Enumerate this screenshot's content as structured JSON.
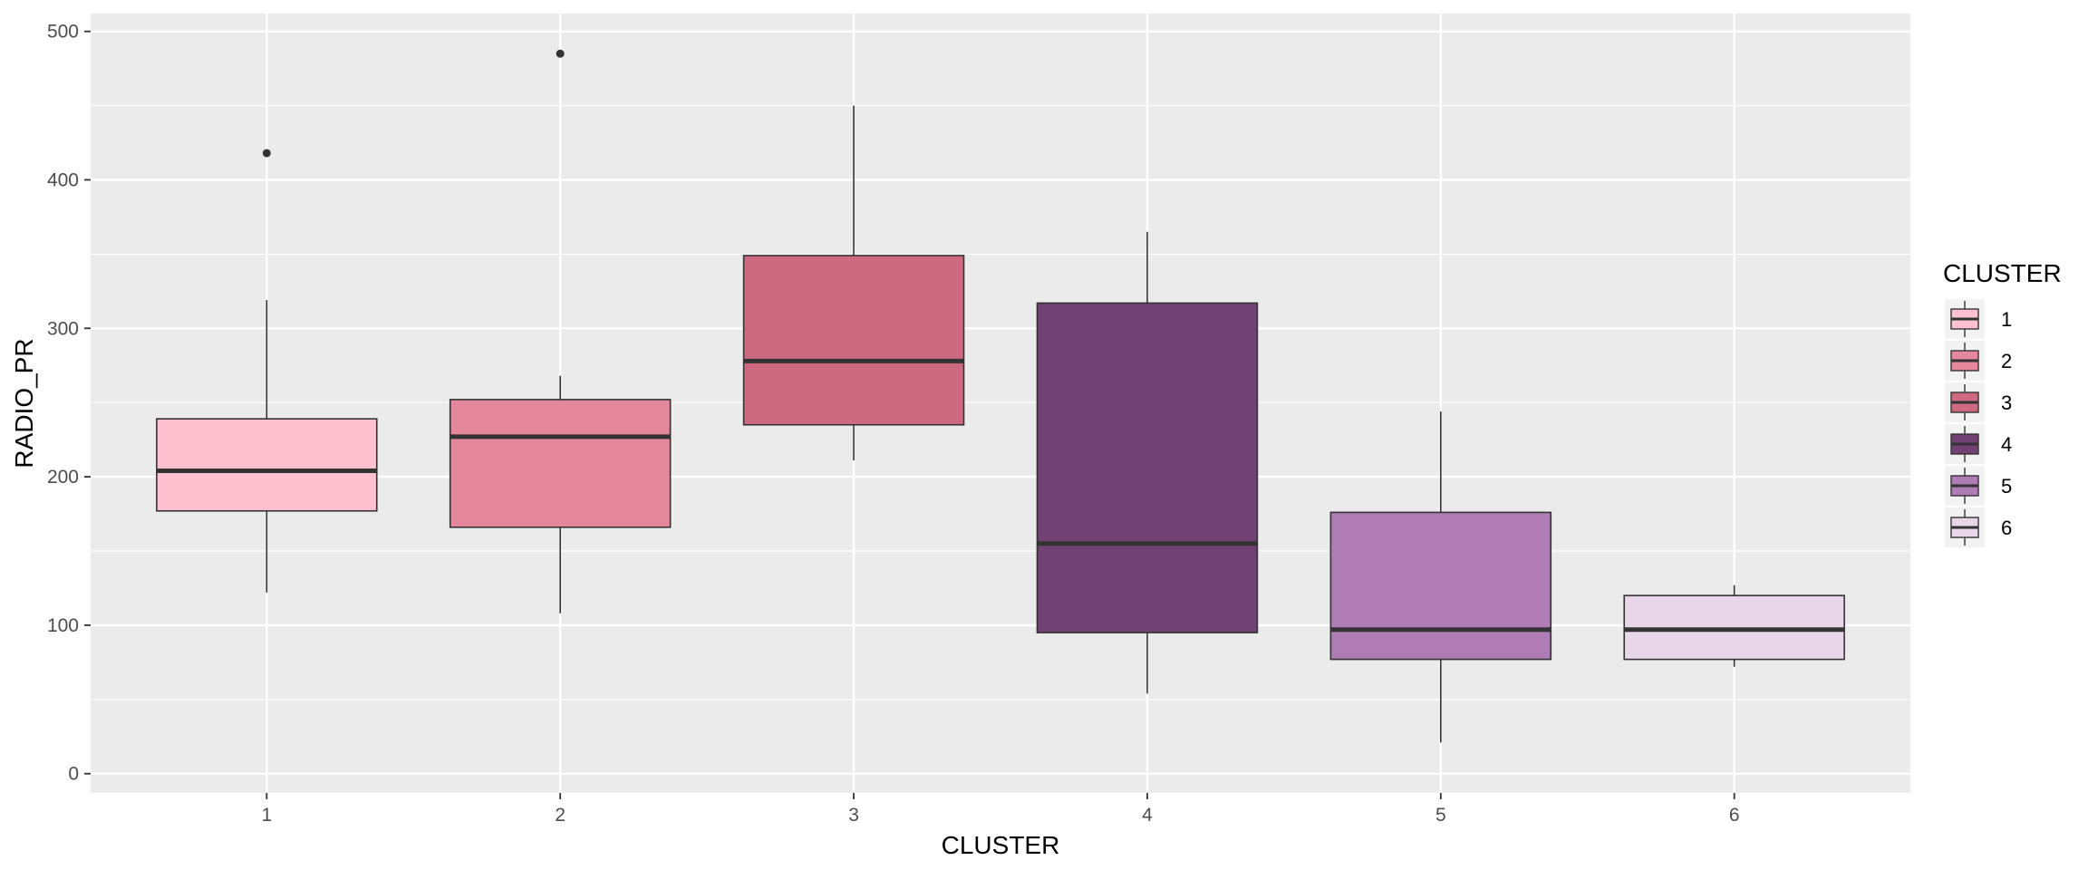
{
  "chart_data": {
    "type": "boxplot",
    "xlabel": "CLUSTER",
    "ylabel": "RADIO_PR",
    "ylim": [
      0,
      500
    ],
    "yticks": [
      0,
      100,
      200,
      300,
      400,
      500
    ],
    "categories": [
      "1",
      "2",
      "3",
      "4",
      "5",
      "6"
    ],
    "grid": true,
    "legend": {
      "title": "CLUSTER",
      "position": "right"
    },
    "boxes": [
      {
        "category": "1",
        "color": "#FFC0CF",
        "whisker_low": 122,
        "q1": 177,
        "median": 204,
        "q3": 239,
        "whisker_high": 319,
        "outliers": [
          418
        ]
      },
      {
        "category": "2",
        "color": "#E5879D",
        "whisker_low": 108,
        "q1": 166,
        "median": 227,
        "q3": 252,
        "whisker_high": 268,
        "outliers": [
          485
        ]
      },
      {
        "category": "3",
        "color": "#CD6A82",
        "whisker_low": 211,
        "q1": 235,
        "median": 278,
        "q3": 349,
        "whisker_high": 450,
        "outliers": []
      },
      {
        "category": "4",
        "color": "#714173",
        "whisker_low": 54,
        "q1": 95,
        "median": 155,
        "q3": 317,
        "whisker_high": 365,
        "outliers": []
      },
      {
        "category": "5",
        "color": "#B07CB5",
        "whisker_low": 21,
        "q1": 77,
        "median": 97,
        "q3": 176,
        "whisker_high": 244,
        "outliers": []
      },
      {
        "category": "6",
        "color": "#E7D7E8",
        "whisker_low": 72,
        "q1": 77,
        "median": 97,
        "q3": 120,
        "whisker_high": 127,
        "outliers": []
      }
    ]
  }
}
